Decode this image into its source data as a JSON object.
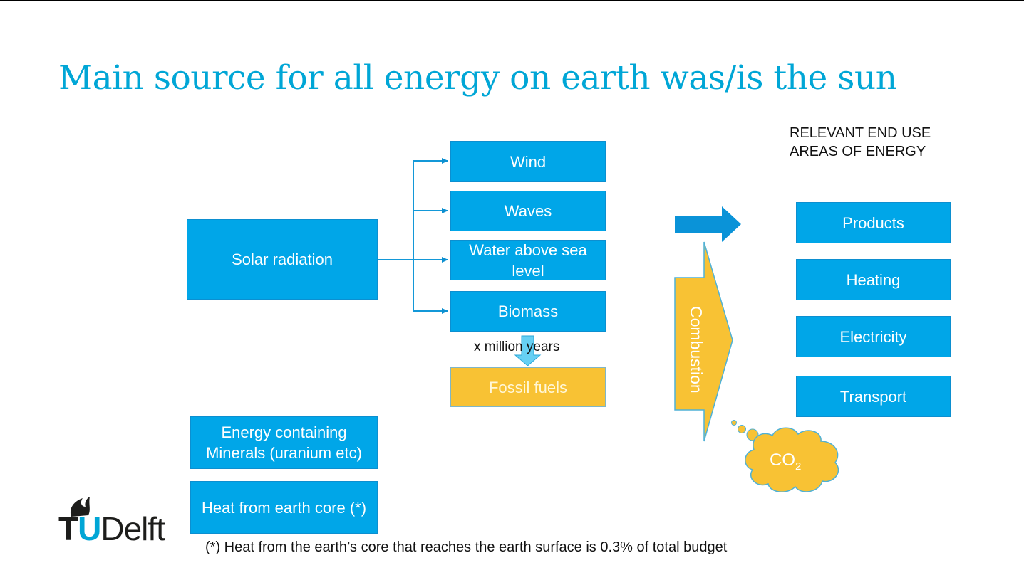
{
  "slide": {
    "title": "Main source for all energy  on earth was/is the sun"
  },
  "sources": {
    "solar": "Solar radiation",
    "minerals": "Energy containing Minerals (uranium etc)",
    "heat_core": "Heat  from earth core (*)"
  },
  "renewables": [
    {
      "label": "Wind"
    },
    {
      "label": "Waves"
    },
    {
      "label": "Water above sea level"
    },
    {
      "label": "Biomass"
    }
  ],
  "fossil": {
    "time_label": "x million years",
    "label": "Fossil fuels"
  },
  "combustion": {
    "label": "Combustion",
    "co2_main": "CO",
    "co2_sub": "2"
  },
  "end_use": {
    "heading": "RELEVANT END USE\nAREAS OF ENERGY",
    "items": [
      {
        "label": "Products"
      },
      {
        "label": "Heating"
      },
      {
        "label": "Electricity"
      },
      {
        "label": "Transport"
      }
    ]
  },
  "footnote": "(*) Heat from the earth’s core that reaches the earth surface is 0.3% of total budget",
  "logo": {
    "t": "T",
    "u": "U",
    "delft": "Delft"
  },
  "colors": {
    "accent_blue": "#00a6e8",
    "title_blue": "#00a6d6",
    "fossil_yellow": "#f8c234"
  }
}
